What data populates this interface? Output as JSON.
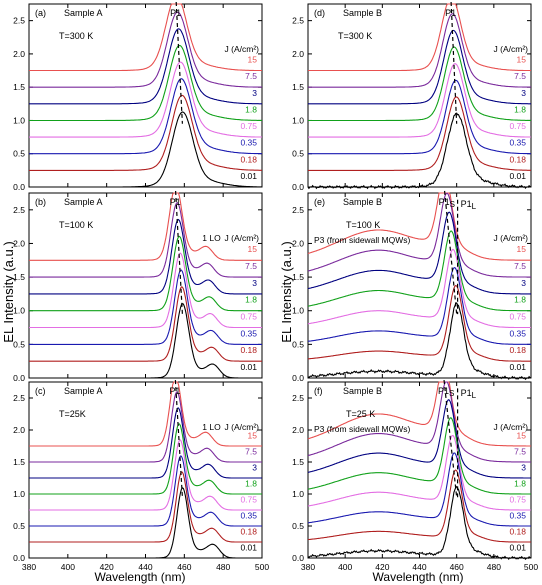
{
  "figure": {
    "ylabel": "EL Intensity (a.u.)",
    "xlabel": "Wavelength (nm)",
    "x_ticks": [
      "380",
      "400",
      "420",
      "440",
      "460",
      "480",
      "500"
    ],
    "y_ticks": [
      "0.0",
      "0.5",
      "1.0",
      "1.5",
      "2.0",
      "2.5"
    ],
    "legend_title": "J (A/cm²)",
    "legend_values": [
      "15",
      "7.5",
      "3",
      "1.8",
      "0.75",
      "0.35",
      "0.18",
      "0.01"
    ]
  },
  "chart_data": [
    {
      "type": "line",
      "id": "a",
      "panel_label": "(a)",
      "sample": "Sample A",
      "temp": "T=300 K",
      "peak_label": "P1",
      "peak_sub": "",
      "peak2_label": "",
      "peak2_sub": "",
      "lo_label": "",
      "p3_label": "",
      "peak_center": 459,
      "peak_width": 5.2,
      "peak_height": 1.02,
      "offsets": [
        1.75,
        1.5,
        1.25,
        1.0,
        0.75,
        0.5,
        0.25,
        0.0
      ],
      "shifts": [
        -3.2,
        -2.6,
        -2.1,
        -1.6,
        -1.1,
        -0.7,
        -0.3,
        0
      ],
      "lo": 0,
      "broad": 0,
      "xlim": [
        380,
        500
      ],
      "ylim": [
        0,
        2.75
      ]
    },
    {
      "type": "line",
      "id": "b",
      "panel_label": "(b)",
      "sample": "Sample A",
      "temp": "T=100 K",
      "peak_label": "P1",
      "peak_sub": "",
      "peak2_label": "",
      "peak2_sub": "",
      "lo_label": "1 LO",
      "p3_label": "",
      "peak_center": 459,
      "peak_width": 3.2,
      "peak_height": 1.02,
      "offsets": [
        1.75,
        1.5,
        1.25,
        1.0,
        0.75,
        0.5,
        0.25,
        0.0
      ],
      "shifts": [
        -3.5,
        -2.8,
        -2.2,
        -1.7,
        -1.2,
        -0.8,
        -0.4,
        0
      ],
      "lo": 0.16,
      "broad": 0,
      "xlim": [
        380,
        500
      ],
      "ylim": [
        0,
        2.75
      ]
    },
    {
      "type": "line",
      "id": "c",
      "panel_label": "(c)",
      "sample": "Sample A",
      "temp": "T=25K",
      "peak_label": "P1",
      "peak_sub": "",
      "peak2_label": "",
      "peak2_sub": "",
      "lo_label": "1 LO",
      "p3_label": "",
      "peak_center": 459,
      "peak_width": 2.8,
      "peak_height": 1.02,
      "offsets": [
        1.75,
        1.5,
        1.25,
        1.0,
        0.75,
        0.5,
        0.25,
        0.0
      ],
      "shifts": [
        -3.6,
        -2.9,
        -2.3,
        -1.8,
        -1.3,
        -0.9,
        -0.4,
        0
      ],
      "lo": 0.18,
      "broad": 0,
      "xlim": [
        380,
        500
      ],
      "ylim": [
        0,
        2.75
      ]
    },
    {
      "type": "line",
      "id": "d",
      "panel_label": "(d)",
      "sample": "Sample B",
      "temp": "T=300 K",
      "peak_label": "P1",
      "peak_sub": "",
      "peak2_label": "",
      "peak2_sub": "",
      "lo_label": "",
      "p3_label": "",
      "peak_center": 460,
      "peak_width": 5.0,
      "peak_height": 1.0,
      "offsets": [
        1.75,
        1.5,
        1.25,
        1.0,
        0.75,
        0.5,
        0.25,
        0.0
      ],
      "shifts": [
        -3.0,
        -2.4,
        -1.9,
        -1.5,
        -1.0,
        -0.6,
        -0.3,
        0
      ],
      "lo": 0,
      "broad": 0,
      "xlim": [
        380,
        500
      ],
      "ylim": [
        0,
        2.75
      ]
    },
    {
      "type": "line",
      "id": "e",
      "panel_label": "(e)",
      "sample": "Sample B",
      "temp": "T=100 K",
      "peak_label": "P1",
      "peak_sub": "S",
      "peak2_label": "P1",
      "peak2_sub": "L",
      "lo_label": "",
      "p3_label": "P3 (from sidewall MQWs)",
      "peak_center": 460,
      "peak_width": 3.6,
      "peak_height": 1.0,
      "offsets": [
        1.75,
        1.5,
        1.25,
        1.0,
        0.75,
        0.5,
        0.25,
        0.0
      ],
      "shifts": [
        -6.5,
        -5.2,
        -4.0,
        -3.0,
        -2.0,
        -1.2,
        -0.5,
        0
      ],
      "lo": 0,
      "broad": 0.45,
      "xlim": [
        380,
        500
      ],
      "ylim": [
        0,
        2.75
      ]
    },
    {
      "type": "line",
      "id": "f",
      "panel_label": "(f)",
      "sample": "Sample B",
      "temp": "T=25 K",
      "peak_label": "P1",
      "peak_sub": "S",
      "peak2_label": "P1",
      "peak2_sub": "L",
      "lo_label": "",
      "p3_label": "P3 (from sidewall MQWs)",
      "peak_center": 460,
      "peak_width": 3.4,
      "peak_height": 1.0,
      "offsets": [
        1.75,
        1.5,
        1.25,
        1.0,
        0.75,
        0.5,
        0.25,
        0.0
      ],
      "shifts": [
        -6.8,
        -5.5,
        -4.3,
        -3.2,
        -2.2,
        -1.3,
        -0.6,
        0
      ],
      "lo": 0,
      "broad": 0.5,
      "xlim": [
        380,
        500
      ],
      "ylim": [
        0,
        2.75
      ]
    }
  ],
  "series_colors": [
    "#e8504f",
    "#7a2a9c",
    "#000080",
    "#11a11a",
    "#e36ee3",
    "#1a1ab0",
    "#b01f1f",
    "#000000"
  ]
}
